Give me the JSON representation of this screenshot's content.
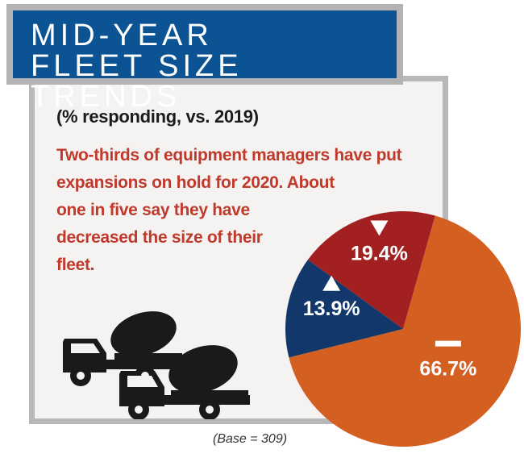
{
  "header": {
    "title_line_1": "MID-YEAR",
    "title_line_2": "FLEET SIZE TRENDS"
  },
  "subtitle": "(% responding, vs. 2019)",
  "description": {
    "line_1": "Two-thirds of equipment managers have put",
    "line_2": "expansions on hold for 2020. About",
    "line_3": "one in five say they have",
    "line_4": "decreased the size of their",
    "line_5": "fleet."
  },
  "base_note": "(Base = 309)",
  "chart_data": {
    "type": "pie",
    "title": "MID-YEAR FLEET SIZE TRENDS",
    "subtitle": "(% responding, vs. 2019)",
    "slices": [
      {
        "marker": "down-triangle-icon",
        "value": 19.4,
        "label": "19.4%",
        "color": "#a32020"
      },
      {
        "marker": "dash-icon",
        "value": 66.7,
        "label": "66.7%",
        "color": "#d35f21"
      },
      {
        "marker": "up-triangle-icon",
        "value": 13.9,
        "label": "13.9%",
        "color": "#12386b"
      }
    ],
    "note": "(Base = 309)"
  },
  "colors": {
    "title_bg": "#0c5394",
    "title_border": "#b3b3b3",
    "card_bg": "#f4f3f1",
    "card_border": "#b8b8b8",
    "text_red": "#c0392b",
    "truck": "#1a1a1a"
  }
}
